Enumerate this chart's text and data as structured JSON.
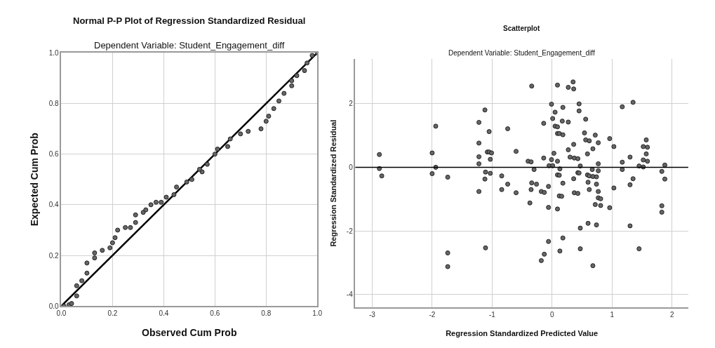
{
  "chart_data": [
    {
      "type": "scatter",
      "title": "Normal P-P Plot of Regression Standardized Residual",
      "subtitle": "Dependent Variable: Student_Engagement_diff",
      "xlabel": "Observed Cum Prob",
      "ylabel": "Expected Cum Prob",
      "xlim": [
        0,
        1
      ],
      "ylim": [
        0,
        1
      ],
      "xticks": [
        {
          "value": 0,
          "label": "0.0"
        },
        0.2,
        0.4,
        0.6,
        0.8,
        {
          "value": 1,
          "label": "1.0"
        }
      ],
      "yticks": [
        {
          "value": 0,
          "label": "0.0"
        },
        0.2,
        0.4,
        0.6,
        0.8,
        {
          "value": 1,
          "label": "1.0"
        }
      ],
      "grid": true,
      "marker": "circle",
      "series": [
        {
          "color": "#666666",
          "x": [
            0.01,
            0.03,
            0.04,
            0.06,
            0.06,
            0.08,
            0.1,
            0.1,
            0.13,
            0.13,
            0.16,
            0.19,
            0.2,
            0.21,
            0.22,
            0.25,
            0.27,
            0.29,
            0.29,
            0.32,
            0.33,
            0.35,
            0.37,
            0.39,
            0.41,
            0.44,
            0.45,
            0.49,
            0.51,
            0.55,
            0.54,
            0.57,
            0.6,
            0.61,
            0.65,
            0.66,
            0.7,
            0.73,
            0.78,
            0.8,
            0.81,
            0.83,
            0.85,
            0.87,
            0.9,
            0.9,
            0.92,
            0.95,
            0.96,
            0.98,
            1.0
          ],
          "values": [
            0.0,
            0.005,
            0.01,
            0.04,
            0.08,
            0.1,
            0.13,
            0.17,
            0.19,
            0.21,
            0.22,
            0.23,
            0.25,
            0.27,
            0.3,
            0.31,
            0.31,
            0.33,
            0.36,
            0.37,
            0.38,
            0.4,
            0.41,
            0.41,
            0.43,
            0.44,
            0.47,
            0.49,
            0.5,
            0.53,
            0.54,
            0.56,
            0.6,
            0.62,
            0.63,
            0.66,
            0.68,
            0.69,
            0.7,
            0.73,
            0.75,
            0.78,
            0.81,
            0.84,
            0.87,
            0.89,
            0.91,
            0.93,
            0.96,
            0.99,
            1.0
          ]
        },
        {
          "type": "line",
          "color": "#000000",
          "marker": "none",
          "line_style": "solid",
          "x": [
            0,
            1
          ],
          "values": [
            0,
            1
          ]
        }
      ]
    },
    {
      "type": "scatter",
      "title": "Scatterplot",
      "subtitle": "Dependent Variable: Student_Engagement_diff",
      "xlabel": "Regression Standardized Predicted Value",
      "ylabel": "Regression Standardized Residual",
      "xlim": [
        -3.28,
        2.27
      ],
      "ylim": [
        -4.4,
        3.4
      ],
      "xticks": [
        -3,
        -2,
        -1,
        0,
        1,
        2
      ],
      "yticks": [
        -4,
        -2,
        0,
        2
      ],
      "grid": true,
      "marker": "circle",
      "ref_lines": [
        {
          "axis": "y",
          "value": 0,
          "color": "#000000"
        }
      ],
      "series": [
        {
          "color": "#666666",
          "x": [
            -2.88,
            -2.88,
            -2.84,
            -2.0,
            -2.0,
            -1.94,
            -1.94,
            -1.74,
            -1.22,
            -1.12,
            -1.22,
            -1.22,
            -1.22,
            -1.22,
            -1.05,
            -1.08,
            -1.05,
            -1.01,
            -1.03,
            -1.11,
            -1.12,
            -1.03,
            -0.84,
            -0.84,
            -0.74,
            -0.74,
            -0.6,
            -0.6,
            -0.4,
            -0.35,
            -0.3,
            -0.34,
            -0.26,
            -0.35,
            -0.37,
            -0.34,
            -1.74,
            -1.74,
            -1.11,
            -0.18,
            -0.13,
            -0.14,
            -0.14,
            -0.06,
            -0.06,
            -0.05,
            -0.01,
            -0.01,
            0.01,
            0.01,
            0.03,
            0.05,
            0.05,
            0.09,
            0.09,
            0.09,
            0.12,
            0.18,
            0.09,
            0.13,
            0.09,
            0.12,
            0.18,
            0.12,
            0.16,
            0.09,
            0.17,
            0.18,
            0.27,
            0.27,
            0.35,
            0.36,
            0.27,
            0.3,
            0.36,
            0.37,
            0.43,
            0.47,
            0.45,
            0.45,
            0.43,
            0.45,
            0.36,
            0.37,
            0.43,
            0.54,
            0.56,
            0.56,
            0.62,
            0.59,
            0.68,
            0.72,
            0.77,
            0.59,
            0.62,
            0.68,
            0.74,
            0.67,
            0.77,
            0.77,
            0.6,
            0.74,
            0.62,
            0.77,
            0.77,
            0.81,
            0.72,
            0.81,
            0.96,
            0.96,
            1.03,
            1.03,
            1.17,
            1.35,
            1.17,
            1.17,
            1.3,
            1.35,
            1.3,
            1.45,
            1.52,
            1.52,
            1.59,
            1.57,
            1.52,
            1.59,
            1.57,
            1.83,
            1.88,
            1.88,
            1.83,
            1.83,
            1.3,
            1.45,
            0.74,
            0.6,
            0.47,
            0.47,
            0.68,
            0.18,
            0.13,
            -0.06,
            -0.13,
            -0.18
          ],
          "values": [
            0.4,
            -0.04,
            -0.27,
            0.45,
            -0.2,
            0.0,
            1.29,
            -0.31,
            1.41,
            1.8,
            0.76,
            0.33,
            0.11,
            -0.76,
            1.12,
            0.48,
            0.48,
            0.45,
            0.25,
            -0.15,
            -0.37,
            -0.19,
            -0.27,
            -0.7,
            1.21,
            -0.53,
            0.5,
            -0.8,
            0.19,
            0.17,
            -0.07,
            -0.49,
            -0.53,
            -0.7,
            -1.12,
            2.55,
            -2.69,
            -3.12,
            -2.53,
            -0.76,
            -0.79,
            1.38,
            0.29,
            -0.6,
            -1.26,
            0.05,
            0.24,
            1.98,
            0.05,
            1.53,
            0.44,
            1.73,
            1.29,
            1.27,
            2.58,
            1.06,
            1.06,
            1.02,
            0.19,
            -0.05,
            -0.24,
            -0.25,
            -0.5,
            -0.9,
            -0.91,
            -1.31,
            1.45,
            1.88,
            1.42,
            2.51,
            2.68,
            2.46,
            0.55,
            0.32,
            0.72,
            0.29,
            0.27,
            0.04,
            1.99,
            1.77,
            -0.17,
            -0.18,
            -0.36,
            -0.8,
            -0.82,
            1.08,
            1.51,
            0.86,
            0.83,
            0.42,
            0.58,
            1.01,
            0.77,
            -0.24,
            -0.27,
            -0.29,
            -0.3,
            -0.07,
            0.11,
            -0.11,
            -0.47,
            -0.53,
            -0.7,
            -0.76,
            -0.96,
            -0.99,
            -1.17,
            -1.2,
            -1.27,
            0.9,
            0.65,
            -0.65,
            1.9,
            2.04,
            0.16,
            -0.07,
            0.32,
            -0.36,
            -0.55,
            0.04,
            0.01,
            0.23,
            0.19,
            0.42,
            0.65,
            0.63,
            0.86,
            -0.13,
            0.07,
            -0.37,
            -1.21,
            -1.41,
            -1.84,
            -2.56,
            -1.81,
            -1.76,
            -1.91,
            -2.56,
            -3.09,
            -2.22,
            -2.63,
            -2.33,
            -2.73,
            -2.93
          ]
        }
      ]
    }
  ]
}
